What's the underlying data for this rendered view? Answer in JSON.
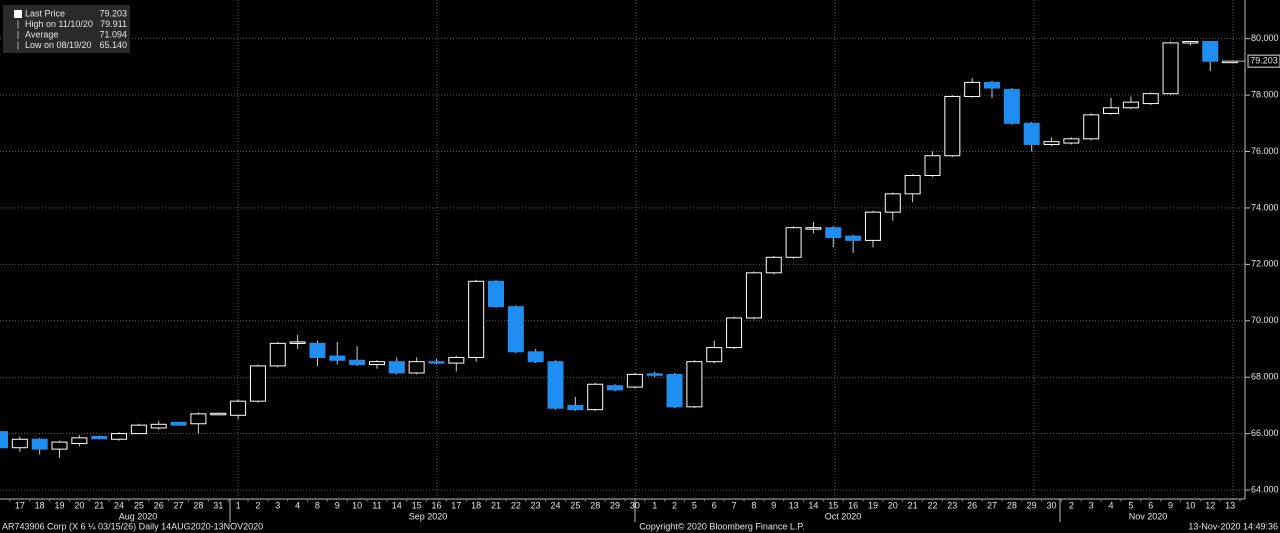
{
  "chart_data": {
    "type": "candlestick",
    "categories": [
      null,
      "17",
      "18",
      "19",
      "20",
      "21",
      "24",
      "25",
      "26",
      "27",
      "28",
      "31",
      "1",
      "2",
      "3",
      "4",
      "8",
      "9",
      "10",
      "11",
      "14",
      "15",
      "16",
      "17",
      "18",
      "21",
      "22",
      "23",
      "24",
      "25",
      "28",
      "29",
      "30",
      "1",
      "2",
      "5",
      "6",
      "7",
      "8",
      "9",
      "13",
      "14",
      "15",
      "16",
      "19",
      "20",
      "21",
      "22",
      "23",
      "26",
      "27",
      "28",
      "29",
      "30",
      "2",
      "3",
      "4",
      "5",
      "6",
      "9",
      "10",
      "12",
      "13"
    ],
    "months": [
      "Aug 2020",
      "Sep 2020",
      "Oct 2020",
      "Nov 2020"
    ],
    "open": [
      66.07,
      65.5,
      65.8,
      65.45,
      65.65,
      65.9,
      65.8,
      66.0,
      66.2,
      66.4,
      66.35,
      66.7,
      66.65,
      67.15,
      68.4,
      69.2,
      69.2,
      68.75,
      68.6,
      68.45,
      68.55,
      68.15,
      68.55,
      68.5,
      68.7,
      71.4,
      70.5,
      68.9,
      68.55,
      67.0,
      66.85,
      67.7,
      67.65,
      68.12,
      68.1,
      66.95,
      68.55,
      69.05,
      70.1,
      71.7,
      72.25,
      73.25,
      73.3,
      73.0,
      72.85,
      73.85,
      74.5,
      75.15,
      75.85,
      77.95,
      78.45,
      78.2,
      77.0,
      76.25,
      76.3,
      76.45,
      77.35,
      77.55,
      77.7,
      78.05,
      79.85,
      79.9,
      79.203
    ],
    "high": [
      66.1,
      65.9,
      65.85,
      65.75,
      65.95,
      65.93,
      66.05,
      66.35,
      66.45,
      66.42,
      66.75,
      66.75,
      67.2,
      68.45,
      69.25,
      69.5,
      69.3,
      69.25,
      69.1,
      68.6,
      68.7,
      68.7,
      68.65,
      68.75,
      71.45,
      71.45,
      70.55,
      69.0,
      68.6,
      67.3,
      67.8,
      67.75,
      68.15,
      68.2,
      68.15,
      68.6,
      69.3,
      70.15,
      71.75,
      72.3,
      73.35,
      73.5,
      73.35,
      73.05,
      73.9,
      74.55,
      75.2,
      76.0,
      78.0,
      78.6,
      78.5,
      78.25,
      77.05,
      76.5,
      76.5,
      77.35,
      77.9,
      77.95,
      78.1,
      79.9,
      79.911,
      79.9,
      79.203
    ],
    "low": [
      65.5,
      65.35,
      65.25,
      65.14,
      65.55,
      65.8,
      65.75,
      65.98,
      66.15,
      66.28,
      66.0,
      66.65,
      66.5,
      67.1,
      68.35,
      69.0,
      68.4,
      68.45,
      68.4,
      68.3,
      68.1,
      68.1,
      68.45,
      68.2,
      68.55,
      70.45,
      68.85,
      68.5,
      66.85,
      66.8,
      66.8,
      67.5,
      67.6,
      68.0,
      66.9,
      66.9,
      68.5,
      69.0,
      70.05,
      71.65,
      72.2,
      73.1,
      72.6,
      72.4,
      72.6,
      73.55,
      74.2,
      75.1,
      75.8,
      77.9,
      77.9,
      76.95,
      76.0,
      76.2,
      76.25,
      76.4,
      77.3,
      77.5,
      77.65,
      78.0,
      79.75,
      78.85,
      79.203
    ],
    "close": [
      65.5,
      65.8,
      65.45,
      65.7,
      65.85,
      65.82,
      66.0,
      66.3,
      66.33,
      66.3,
      66.7,
      66.72,
      67.15,
      68.4,
      69.2,
      69.25,
      68.7,
      68.6,
      68.45,
      68.55,
      68.15,
      68.55,
      68.5,
      68.7,
      71.4,
      70.5,
      68.9,
      68.55,
      66.9,
      66.85,
      67.75,
      67.55,
      68.1,
      68.08,
      66.95,
      68.55,
      69.05,
      70.1,
      71.7,
      72.25,
      73.3,
      73.3,
      72.95,
      72.85,
      73.85,
      74.5,
      75.15,
      75.85,
      77.95,
      78.45,
      78.25,
      77.0,
      76.25,
      76.35,
      76.45,
      77.3,
      77.55,
      77.75,
      78.05,
      79.85,
      79.9,
      79.2,
      79.203
    ],
    "up_color": "#ffffff",
    "down_color": "#1e8ff0",
    "ylim": [
      63.7,
      81.3
    ],
    "yticks": [
      {
        "value": 64,
        "label": "64.000"
      },
      {
        "value": 66,
        "label": "66.000"
      },
      {
        "value": 68,
        "label": "68.000"
      },
      {
        "value": 70,
        "label": "70.000"
      },
      {
        "value": 72,
        "label": "72.000"
      },
      {
        "value": 74,
        "label": "74.000"
      },
      {
        "value": 76,
        "label": "76.000"
      },
      {
        "value": 78,
        "label": "78.000"
      },
      {
        "value": 80,
        "label": "80.000"
      }
    ],
    "grid": true,
    "legend": [
      {
        "name": "Last Price",
        "value": 79.203
      },
      {
        "name": "High on 11/10/20",
        "value": 79.911
      },
      {
        "name": "Average",
        "value": 71.094
      },
      {
        "name": "Low on 08/19/20",
        "value": 65.14,
        "value_label": "65.140"
      }
    ],
    "footer": {
      "left": "AR743906 Corp (X 6 ¼ 03/15/26)  Daily 14AUG2020-13NOV2020",
      "center": "Copyright© 2020 Bloomberg Finance L.P.",
      "right": "13-Nov-2020 14:49:36"
    }
  }
}
